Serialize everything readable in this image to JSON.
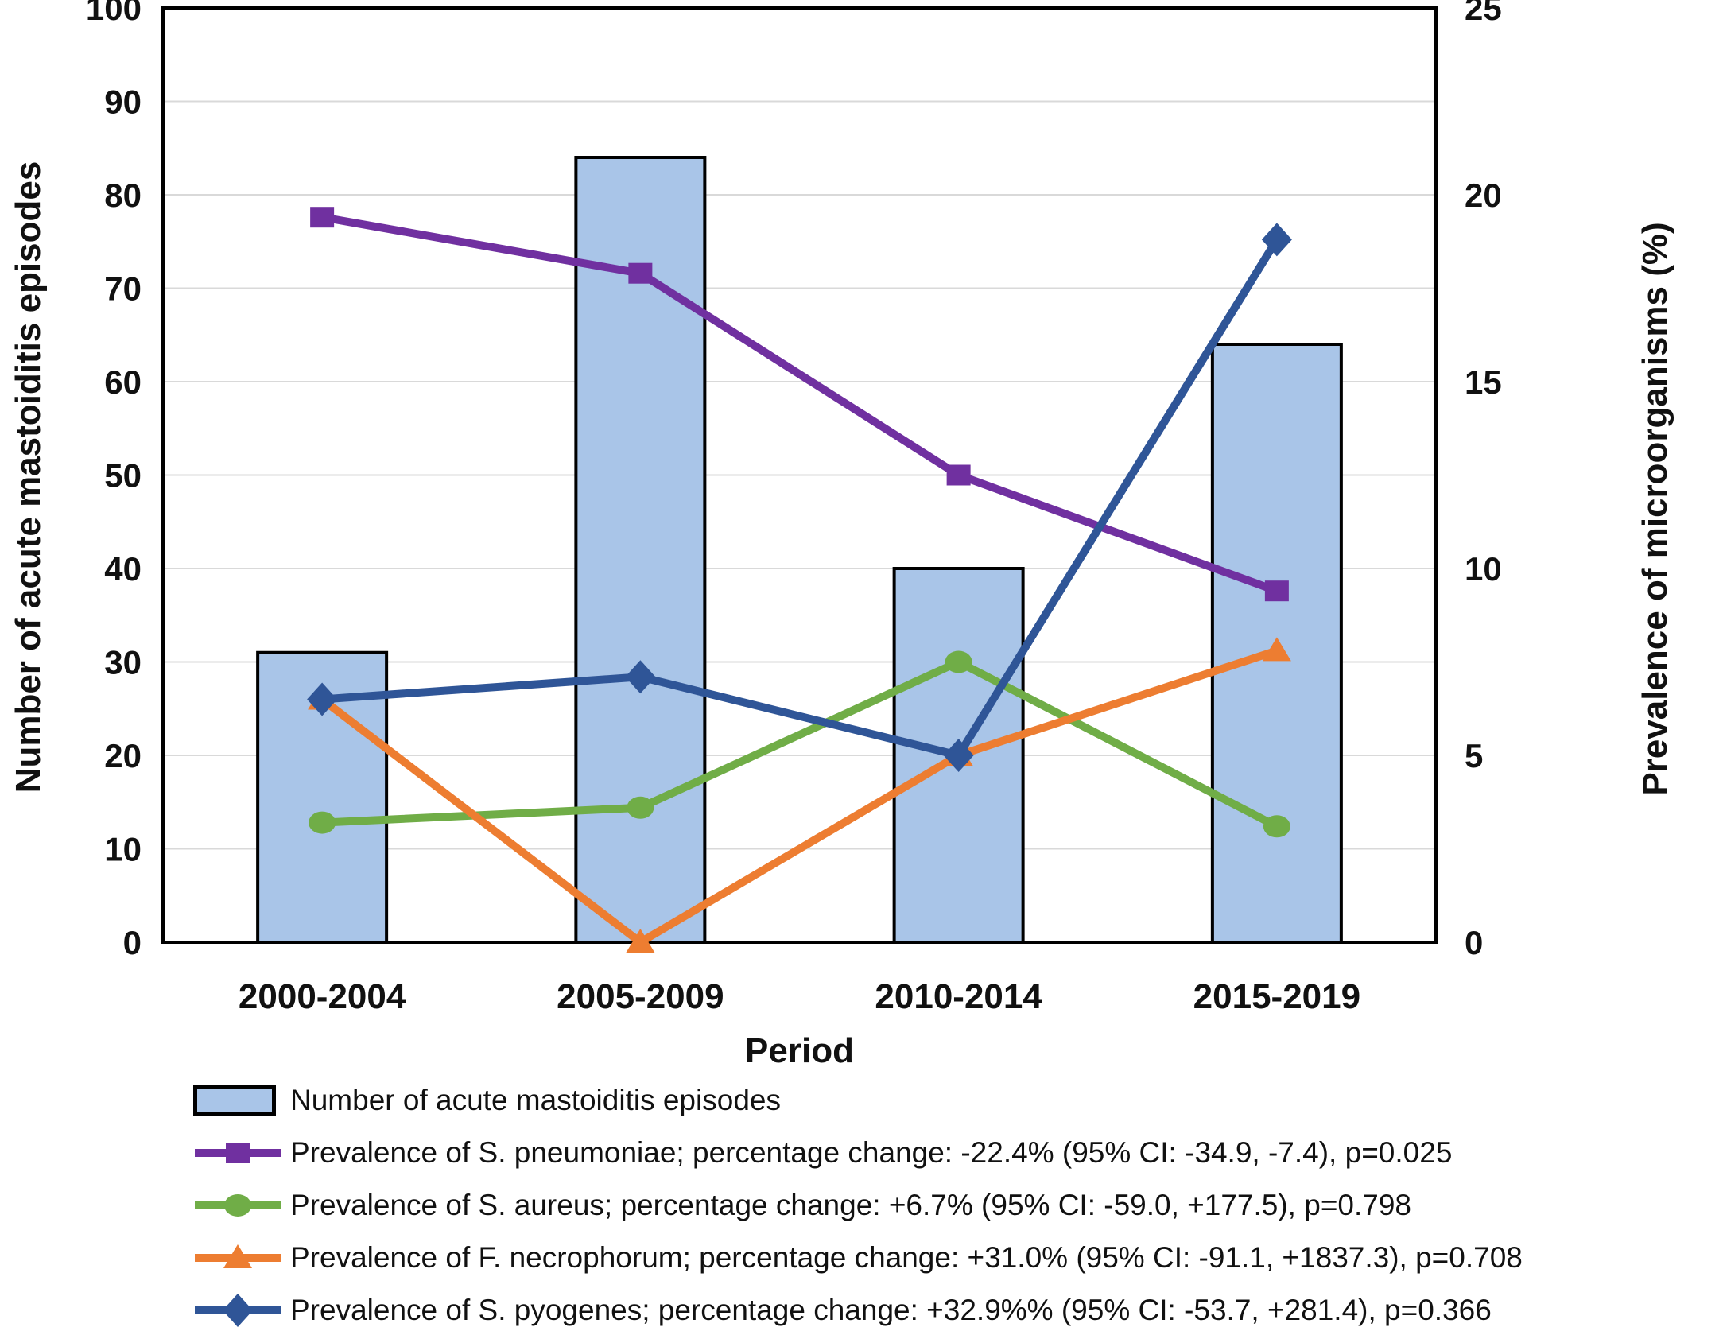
{
  "chart_data": {
    "type": "combo-bar-line",
    "categories": [
      "2000-2004",
      "2005-2009",
      "2010-2014",
      "2015-2019"
    ],
    "xlabel": "Period",
    "left_axis": {
      "label": "Number of acute mastoiditis episodes",
      "min": 0,
      "max": 100,
      "step": 10
    },
    "right_axis": {
      "label": "Prevalence of microorganisms (%)",
      "min": 0,
      "max": 25,
      "step": 5
    },
    "bars": {
      "name": "Number of acute mastoiditis episodes",
      "values": [
        31,
        84,
        40,
        64
      ],
      "fill": "#A9C5E8",
      "stroke": "#000000"
    },
    "series": [
      {
        "name": "S. pneumoniae",
        "marker": "square",
        "color": "#7030A0",
        "values_pct": [
          19.4,
          17.9,
          12.5,
          9.4
        ],
        "legend": "Prevalence of S. pneumoniae; percentage change: -22.4% (95% CI: -34.9, -7.4), p=0.025"
      },
      {
        "name": "S. aureus",
        "marker": "circle",
        "color": "#70AD47",
        "values_pct": [
          3.2,
          3.6,
          7.5,
          3.1
        ],
        "legend": "Prevalence of S. aureus; percentage change: +6.7% (95% CI: -59.0, +177.5), p=0.798"
      },
      {
        "name": "F. necrophorum",
        "marker": "triangle",
        "color": "#ED7D31",
        "values_pct": [
          6.5,
          0,
          5,
          7.8
        ],
        "legend": "Prevalence of F. necrophorum; percentage change: +31.0% (95% CI: -91.1, +1837.3), p=0.708"
      },
      {
        "name": "S. pyogenes",
        "marker": "diamond",
        "color": "#2F5597",
        "values_pct": [
          6.5,
          7.1,
          5,
          18.8
        ],
        "legend": "Prevalence of S. pyogenes; percentage change: +32.9%% (95% CI: -53.7, +281.4), p=0.366"
      }
    ],
    "gridline_color": "#D9D9D9",
    "axis_color": "#000000",
    "legend_position": "bottom-left",
    "grid": true
  }
}
